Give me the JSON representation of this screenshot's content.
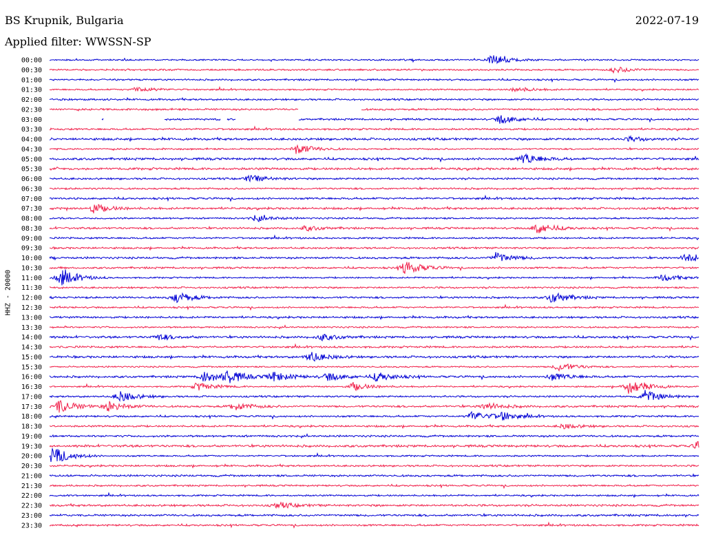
{
  "header": {
    "station": "BS Krupnik, Bulgaria",
    "date": "2022-07-19",
    "filter": "Applied filter: WWSSN-SP"
  },
  "chart_data": {
    "type": "line",
    "title": "BS Krupnik, Bulgaria",
    "ylabel": "HHZ - 20000",
    "row_labels": [
      "00:00",
      "00:30",
      "01:00",
      "01:30",
      "02:00",
      "02:30",
      "03:00",
      "03:30",
      "04:00",
      "04:30",
      "05:00",
      "05:30",
      "06:00",
      "06:30",
      "07:00",
      "07:30",
      "08:00",
      "08:30",
      "09:00",
      "09:30",
      "10:00",
      "10:30",
      "11:00",
      "11:30",
      "12:00",
      "12:30",
      "13:00",
      "13:30",
      "14:00",
      "14:30",
      "15:00",
      "15:30",
      "16:00",
      "16:30",
      "17:00",
      "17:30",
      "18:00",
      "18:30",
      "19:00",
      "19:30",
      "20:00",
      "20:30",
      "21:00",
      "21:30",
      "22:00",
      "22:30",
      "23:00",
      "23:30"
    ],
    "colors": [
      "#0000d4",
      "#f0204a"
    ],
    "gaps": [
      {
        "row": "02:30",
        "start_min": 11.5,
        "end_min": 14.4
      },
      {
        "row": "03:00",
        "start_min": 0.0,
        "end_min": 2.4
      },
      {
        "row": "03:00",
        "start_min": 2.5,
        "end_min": 5.3
      },
      {
        "row": "03:00",
        "start_min": 7.9,
        "end_min": 8.2
      },
      {
        "row": "03:00",
        "start_min": 8.6,
        "end_min": 11.5
      }
    ],
    "events": [
      {
        "row": "00:00",
        "t": 20.4,
        "amp": 1.4
      },
      {
        "row": "00:30",
        "t": 26.1,
        "amp": 0.8
      },
      {
        "row": "01:30",
        "t": 4.0,
        "amp": 0.7
      },
      {
        "row": "01:30",
        "t": 21.5,
        "amp": 0.6
      },
      {
        "row": "03:00",
        "t": 20.8,
        "amp": 1.0
      },
      {
        "row": "04:00",
        "t": 26.8,
        "amp": 0.5
      },
      {
        "row": "04:30",
        "t": 11.4,
        "amp": 1.3
      },
      {
        "row": "05:00",
        "t": 21.9,
        "amp": 1.3
      },
      {
        "row": "06:00",
        "t": 9.2,
        "amp": 0.9
      },
      {
        "row": "07:30",
        "t": 2.0,
        "amp": 1.1
      },
      {
        "row": "08:00",
        "t": 9.5,
        "amp": 0.7
      },
      {
        "row": "08:30",
        "t": 22.5,
        "amp": 1.4
      },
      {
        "row": "08:30",
        "t": 11.8,
        "amp": 0.6
      },
      {
        "row": "10:00",
        "t": 20.6,
        "amp": 1.2
      },
      {
        "row": "10:00",
        "t": 29.4,
        "amp": 1.2
      },
      {
        "row": "10:30",
        "t": 16.4,
        "amp": 1.7
      },
      {
        "row": "11:00",
        "t": 0.5,
        "amp": 2.0
      },
      {
        "row": "11:00",
        "t": 28.3,
        "amp": 0.8
      },
      {
        "row": "12:00",
        "t": 5.8,
        "amp": 1.4
      },
      {
        "row": "12:00",
        "t": 23.2,
        "amp": 1.4
      },
      {
        "row": "14:00",
        "t": 5.0,
        "amp": 0.7
      },
      {
        "row": "14:00",
        "t": 12.5,
        "amp": 0.8
      },
      {
        "row": "15:00",
        "t": 12.0,
        "amp": 1.2
      },
      {
        "row": "15:30",
        "t": 23.5,
        "amp": 1.1
      },
      {
        "row": "16:00",
        "t": 7.1,
        "amp": 1.4
      },
      {
        "row": "16:00",
        "t": 8.2,
        "amp": 1.5
      },
      {
        "row": "16:00",
        "t": 10.3,
        "amp": 1.2
      },
      {
        "row": "16:00",
        "t": 12.8,
        "amp": 1.0
      },
      {
        "row": "16:00",
        "t": 15.1,
        "amp": 1.1
      },
      {
        "row": "16:00",
        "t": 23.2,
        "amp": 0.9
      },
      {
        "row": "16:30",
        "t": 6.8,
        "amp": 1.0
      },
      {
        "row": "16:30",
        "t": 14.0,
        "amp": 1.0
      },
      {
        "row": "16:30",
        "t": 26.7,
        "amp": 2.2
      },
      {
        "row": "17:00",
        "t": 3.2,
        "amp": 1.3
      },
      {
        "row": "17:00",
        "t": 27.5,
        "amp": 1.4
      },
      {
        "row": "17:30",
        "t": 0.4,
        "amp": 1.6
      },
      {
        "row": "17:30",
        "t": 2.7,
        "amp": 1.2
      },
      {
        "row": "17:30",
        "t": 8.5,
        "amp": 1.0
      },
      {
        "row": "17:30",
        "t": 20.1,
        "amp": 0.9
      },
      {
        "row": "18:00",
        "t": 19.5,
        "amp": 1.2
      },
      {
        "row": "18:00",
        "t": 20.8,
        "amp": 1.1
      },
      {
        "row": "18:30",
        "t": 23.7,
        "amp": 0.6
      },
      {
        "row": "19:30",
        "t": 29.9,
        "amp": 0.9
      },
      {
        "row": "20:00",
        "t": 0.1,
        "amp": 2.3
      },
      {
        "row": "22:30",
        "t": 10.5,
        "amp": 0.7
      }
    ]
  }
}
